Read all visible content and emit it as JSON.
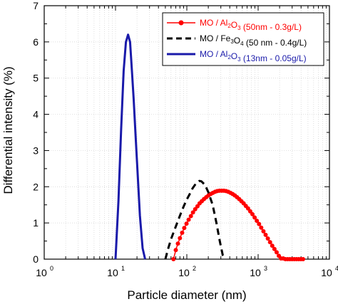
{
  "chart_data": {
    "type": "line",
    "xlabel": "Particle diameter (nm)",
    "ylabel": "Differential intensity (%)",
    "x_scale": "log",
    "xlim": [
      1,
      10000
    ],
    "ylim": [
      0,
      7
    ],
    "grid": true,
    "legend_placement": "top-right",
    "x_ticks": [
      {
        "base": "10",
        "exp": "0"
      },
      {
        "base": "10",
        "exp": "1"
      },
      {
        "base": "10",
        "exp": "2"
      },
      {
        "base": "10",
        "exp": "3"
      },
      {
        "base": "10",
        "exp": "4"
      }
    ],
    "y_ticks": [
      "0",
      "1",
      "2",
      "3",
      "4",
      "5",
      "6",
      "7"
    ],
    "series": [
      {
        "name": "MO / Al2O3 (50nm - 0.3g/L)",
        "legend": {
          "pre": "MO / Al",
          "s1": "2",
          "mid": "O",
          "s2": "3",
          "post": " (50nm - 0.3g/L)"
        },
        "color": "#ff0000",
        "style": "solid-markers",
        "x": [
          65,
          70,
          75,
          80,
          86,
          92,
          99,
          106,
          114,
          122,
          131,
          141,
          151,
          162,
          174,
          187,
          201,
          216,
          232,
          249,
          267,
          287,
          308,
          331,
          355,
          381,
          409,
          439,
          471,
          506,
          543,
          583,
          626,
          672,
          722,
          775,
          832,
          893,
          959,
          1030,
          1105,
          1187,
          1274,
          1368,
          1469,
          1577,
          1693,
          1818,
          1952,
          2096,
          2250,
          2416,
          2594,
          2785,
          2990,
          3210,
          3447,
          3700,
          3973,
          4266
        ],
        "y": [
          0,
          0.25,
          0.43,
          0.58,
          0.73,
          0.86,
          0.98,
          1.09,
          1.19,
          1.29,
          1.38,
          1.46,
          1.54,
          1.6,
          1.66,
          1.71,
          1.76,
          1.8,
          1.83,
          1.86,
          1.88,
          1.89,
          1.89,
          1.89,
          1.88,
          1.86,
          1.83,
          1.8,
          1.76,
          1.71,
          1.66,
          1.6,
          1.54,
          1.47,
          1.4,
          1.32,
          1.24,
          1.15,
          1.06,
          0.97,
          0.87,
          0.77,
          0.67,
          0.57,
          0.47,
          0.37,
          0.28,
          0.19,
          0.09,
          0.02,
          0.02,
          0,
          0,
          0,
          0,
          0,
          0,
          0,
          0,
          0
        ]
      },
      {
        "name": "MO / Fe3O4 (50 nm - 0.4g/L)",
        "legend": {
          "pre": "MO / Fe",
          "s1": "3",
          "mid": "O",
          "s2": "4",
          "post": " (50 nm - 0.4g/L)"
        },
        "color": "#000000",
        "style": "dashed",
        "x": [
          50,
          55,
          60,
          70,
          80,
          90,
          100,
          110,
          120,
          130,
          140,
          150,
          160,
          180,
          200,
          230,
          260,
          290,
          320,
          340
        ],
        "y": [
          0,
          0.3,
          0.55,
          0.9,
          1.2,
          1.45,
          1.65,
          1.8,
          1.95,
          2.05,
          2.12,
          2.16,
          2.15,
          2.05,
          1.85,
          1.5,
          1.0,
          0.5,
          0.1,
          0
        ]
      },
      {
        "name": "MO / Al2O3 (13nm - 0.05g/L)",
        "legend": {
          "pre": "MO / Al",
          "s1": "2",
          "mid": "O",
          "s2": "3",
          "post": " (13nm - 0.05g/L)"
        },
        "color": "#1a1aaa",
        "style": "solid-thick",
        "x": [
          10,
          11,
          12,
          13,
          14,
          15,
          16,
          17,
          18,
          19,
          20,
          22,
          24,
          26
        ],
        "y": [
          0,
          1.6,
          3.6,
          5.2,
          6.0,
          6.2,
          6.0,
          5.2,
          4.4,
          3.5,
          2.7,
          1.2,
          0.3,
          0
        ]
      }
    ]
  }
}
